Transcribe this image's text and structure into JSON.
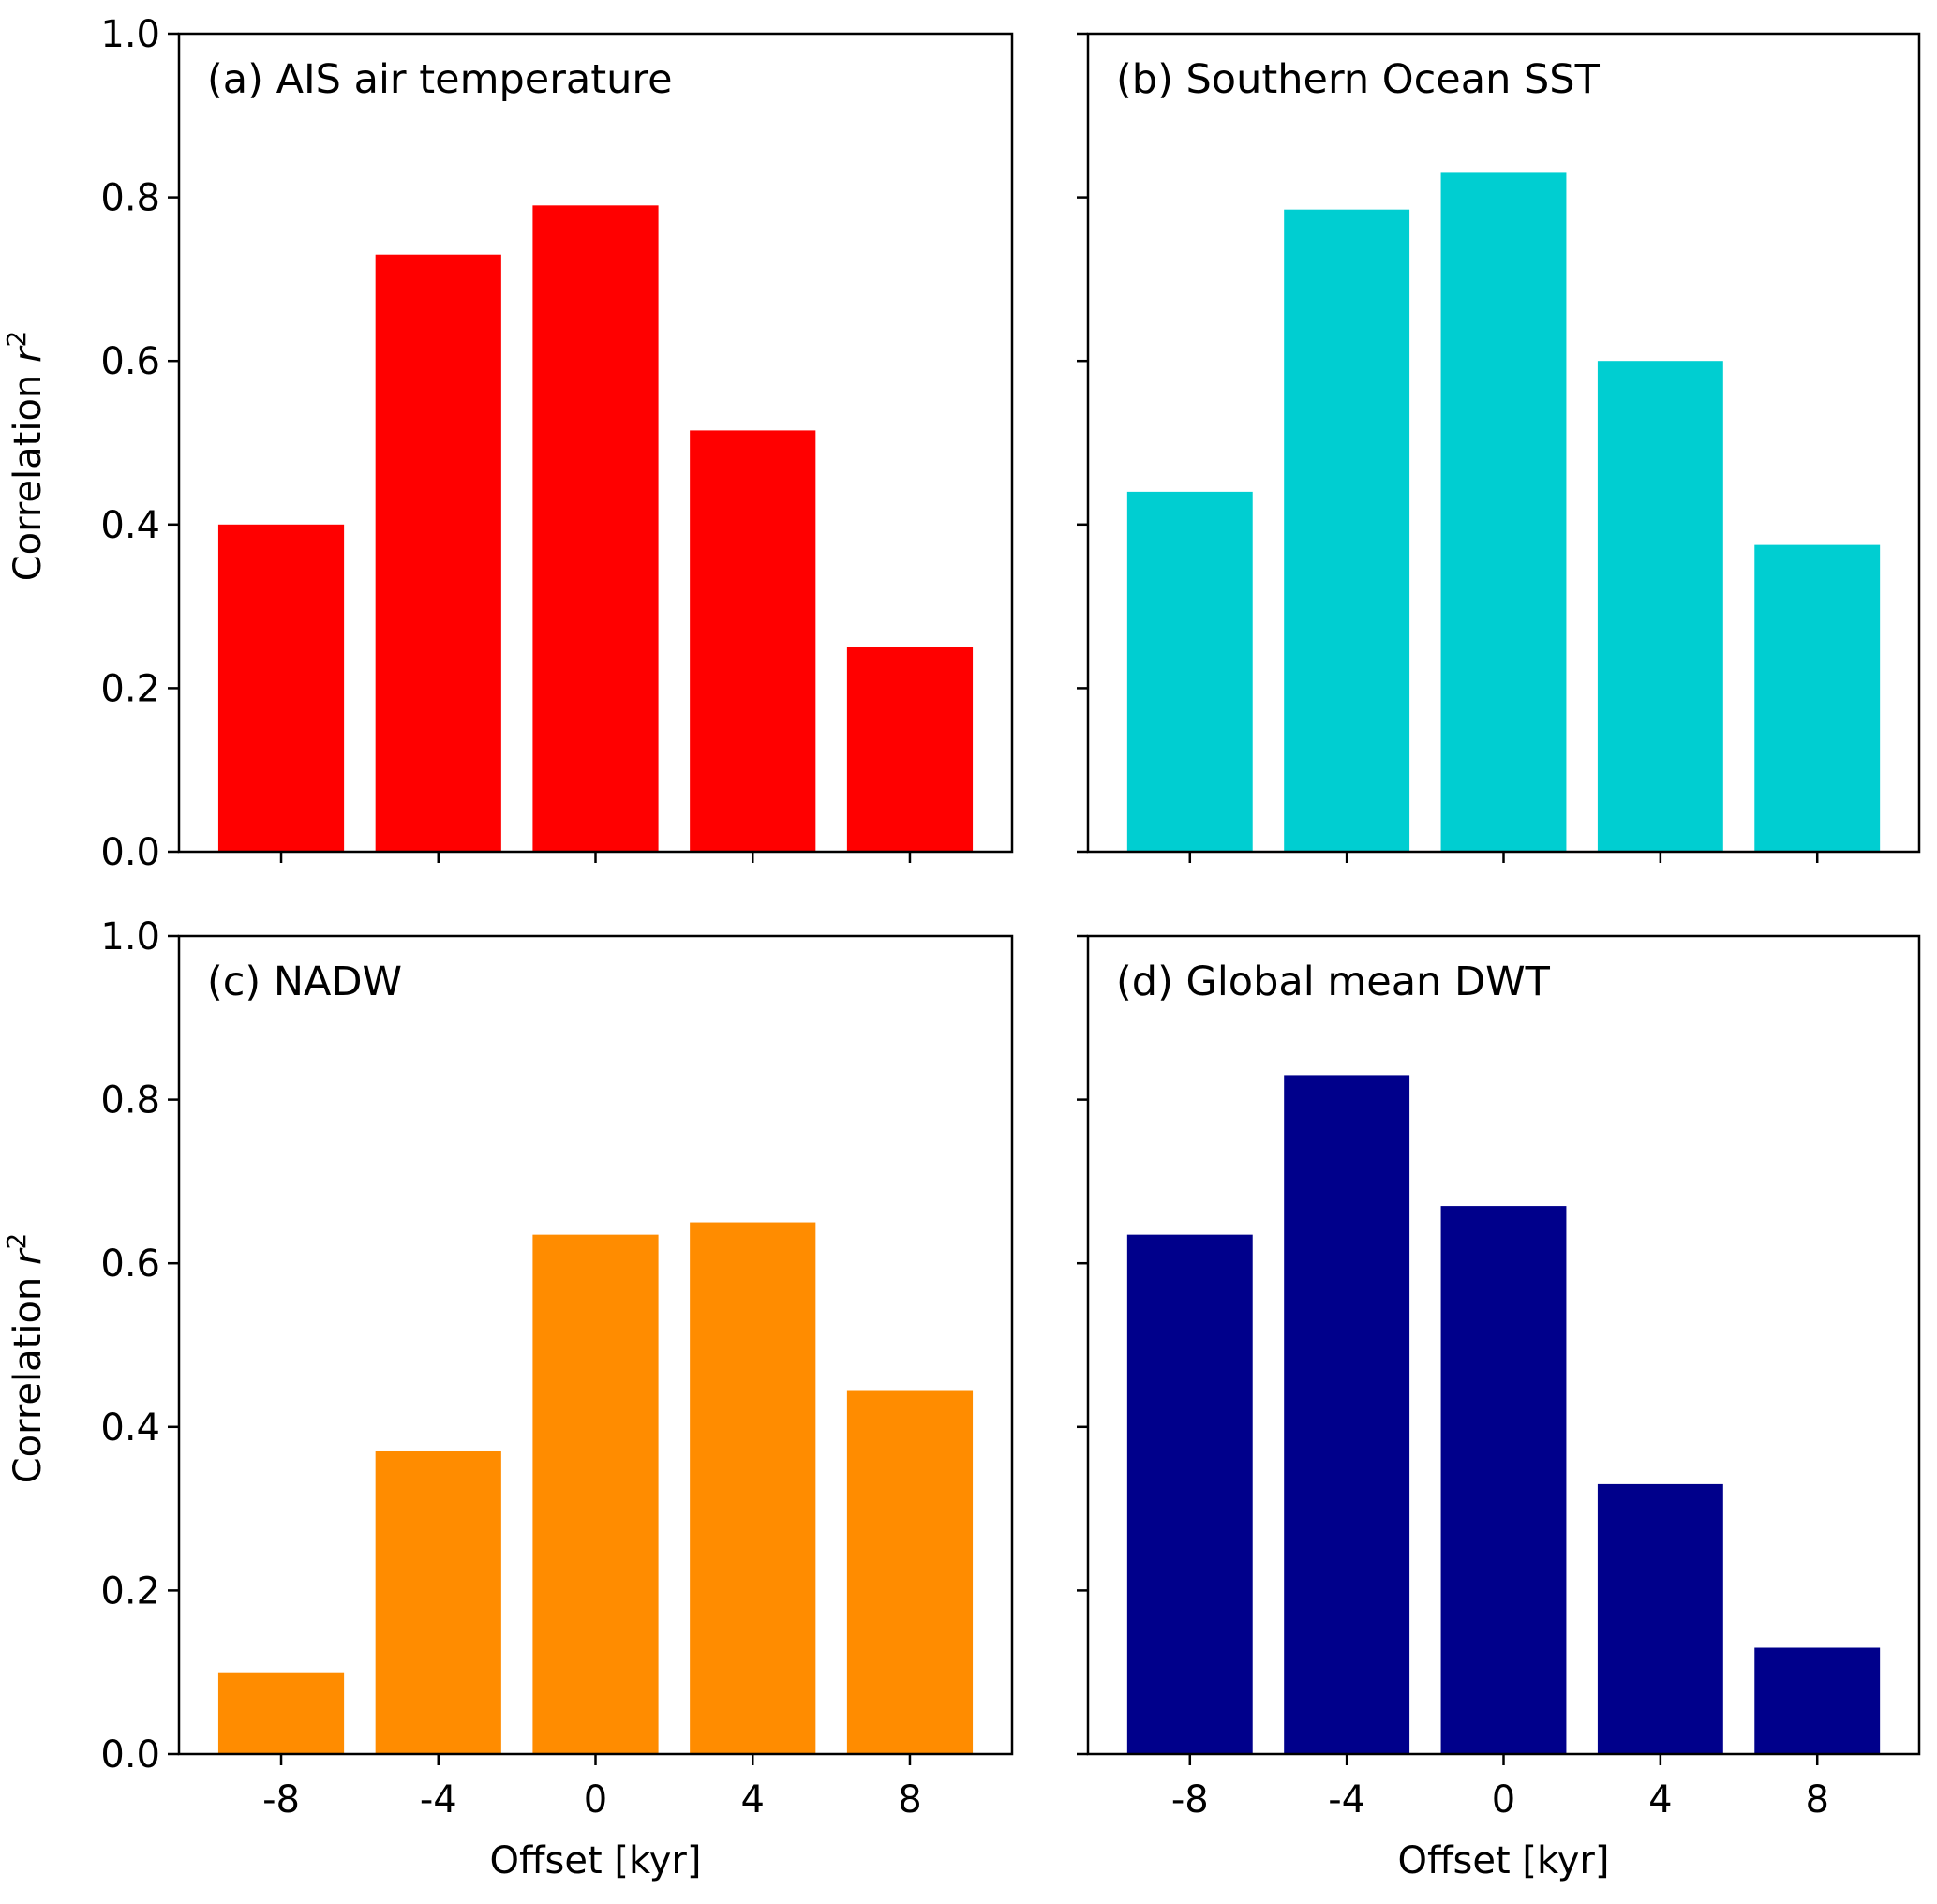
{
  "chart_data": [
    {
      "type": "bar",
      "title": "(a) AIS air temperature",
      "categories": [
        "-8",
        "-4",
        "0",
        "4",
        "8"
      ],
      "x": [
        -8,
        -4,
        0,
        4,
        8
      ],
      "values": [
        0.4,
        0.73,
        0.79,
        0.515,
        0.25
      ],
      "color": "#ff0000",
      "ylabel": "Correlation r²",
      "xlabel": "",
      "ylim": [
        0,
        1
      ],
      "yticks": [
        "0.0",
        "0.2",
        "0.4",
        "0.6",
        "0.8",
        "1.0"
      ],
      "grid": false
    },
    {
      "type": "bar",
      "title": "(b) Southern Ocean SST",
      "categories": [
        "-8",
        "-4",
        "0",
        "4",
        "8"
      ],
      "x": [
        -8,
        -4,
        0,
        4,
        8
      ],
      "values": [
        0.44,
        0.785,
        0.83,
        0.6,
        0.375
      ],
      "color": "#00ced1",
      "ylabel": "",
      "xlabel": "",
      "ylim": [
        0,
        1
      ],
      "grid": false
    },
    {
      "type": "bar",
      "title": "(c) NADW",
      "categories": [
        "-8",
        "-4",
        "0",
        "4",
        "8"
      ],
      "x": [
        -8,
        -4,
        0,
        4,
        8
      ],
      "values": [
        0.1,
        0.37,
        0.635,
        0.65,
        0.445
      ],
      "color": "#ff8c00",
      "ylabel": "Correlation r²",
      "xlabel": "Offset [kyr]",
      "ylim": [
        0,
        1
      ],
      "yticks": [
        "0.0",
        "0.2",
        "0.4",
        "0.6",
        "0.8",
        "1.0"
      ],
      "xticks": [
        "-8",
        "-4",
        "0",
        "4",
        "8"
      ],
      "grid": false
    },
    {
      "type": "bar",
      "title": "(d) Global mean DWT",
      "categories": [
        "-8",
        "-4",
        "0",
        "4",
        "8"
      ],
      "x": [
        -8,
        -4,
        0,
        4,
        8
      ],
      "values": [
        0.635,
        0.83,
        0.67,
        0.33,
        0.13
      ],
      "color": "#00008b",
      "ylabel": "",
      "xlabel": "Offset [kyr]",
      "ylim": [
        0,
        1
      ],
      "xticks": [
        "-8",
        "-4",
        "0",
        "4",
        "8"
      ],
      "grid": false
    }
  ]
}
